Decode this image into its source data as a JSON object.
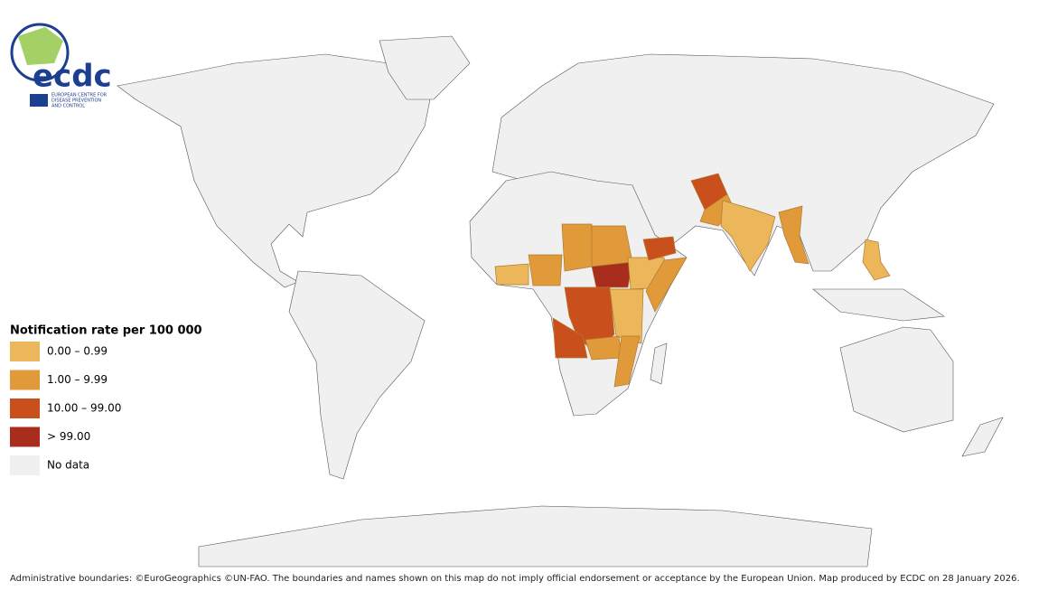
{
  "logo": {
    "name": "ecdc",
    "subtitle": [
      "EUROPEAN CENTRE FOR",
      "DISEASE PREVENTION",
      "AND CONTROL"
    ]
  },
  "legend": {
    "title": "Notification rate per 100 000",
    "items": [
      {
        "label": "0.00 – 0.99",
        "color": "#ecb75a"
      },
      {
        "label": "1.00 – 9.99",
        "color": "#e09a3a"
      },
      {
        "label": "10.00 – 99.00",
        "color": "#c9501c"
      },
      {
        "label": "> 99.00",
        "color": "#a82d1c"
      },
      {
        "label": "No data",
        "color": "#f0f0f0"
      }
    ]
  },
  "footer": "Administrative boundaries: ©EuroGeographics ©UN-FAO. The boundaries and names shown on this map do not imply official endorsement or acceptance by the European Union. Map produced by ECDC on 28 January 2026."
}
